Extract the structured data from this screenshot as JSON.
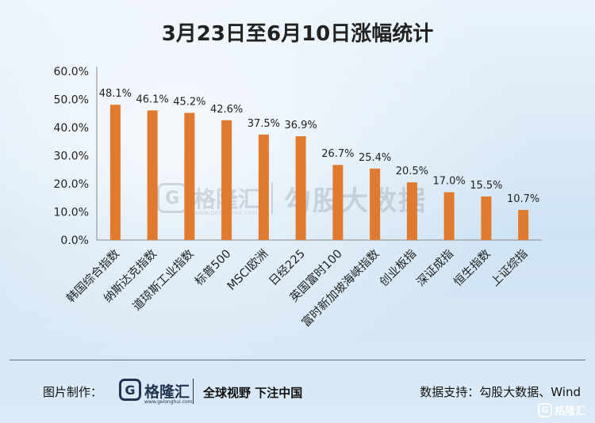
{
  "chart_data": {
    "type": "bar",
    "title": "3月23日至6月10日涨幅统计",
    "categories": [
      "韩国综合指数",
      "纳斯达克指数",
      "道琼斯工业指数",
      "标普500",
      "MSCI欧洲",
      "日经225",
      "英国富时100",
      "富时新加坡海峡指数",
      "创业板指",
      "深证成指",
      "恒生指数",
      "上证综指"
    ],
    "values": [
      48.1,
      46.1,
      45.2,
      42.6,
      37.5,
      36.9,
      26.7,
      25.4,
      20.5,
      17.0,
      15.5,
      10.7
    ],
    "value_labels": [
      "48.1%",
      "46.1%",
      "45.2%",
      "42.6%",
      "37.5%",
      "36.9%",
      "26.7%",
      "25.4%",
      "20.5%",
      "17.0%",
      "15.5%",
      "10.7%"
    ],
    "ylim": [
      0,
      60
    ],
    "yticks": [
      "0.0%",
      "10.0%",
      "20.0%",
      "30.0%",
      "40.0%",
      "50.0%",
      "60.0%"
    ],
    "xlabel": "",
    "ylabel": "",
    "bar_color": "#e07a2e",
    "grid": false
  },
  "watermark": {
    "logo_glyph": "G",
    "brand": "格隆汇",
    "url": "www.gelonghui.com",
    "partner": "勾股大数据"
  },
  "footer": {
    "made_by_label": "图片制作：",
    "logo_glyph": "G",
    "brand": "格隆汇",
    "url": "www.gelonghui.com",
    "slogan": "全球视野 下注中国",
    "source": "数据支持：勾股大数据、Wind"
  },
  "corner": {
    "logo_glyph": "G",
    "brand": "格隆汇"
  }
}
